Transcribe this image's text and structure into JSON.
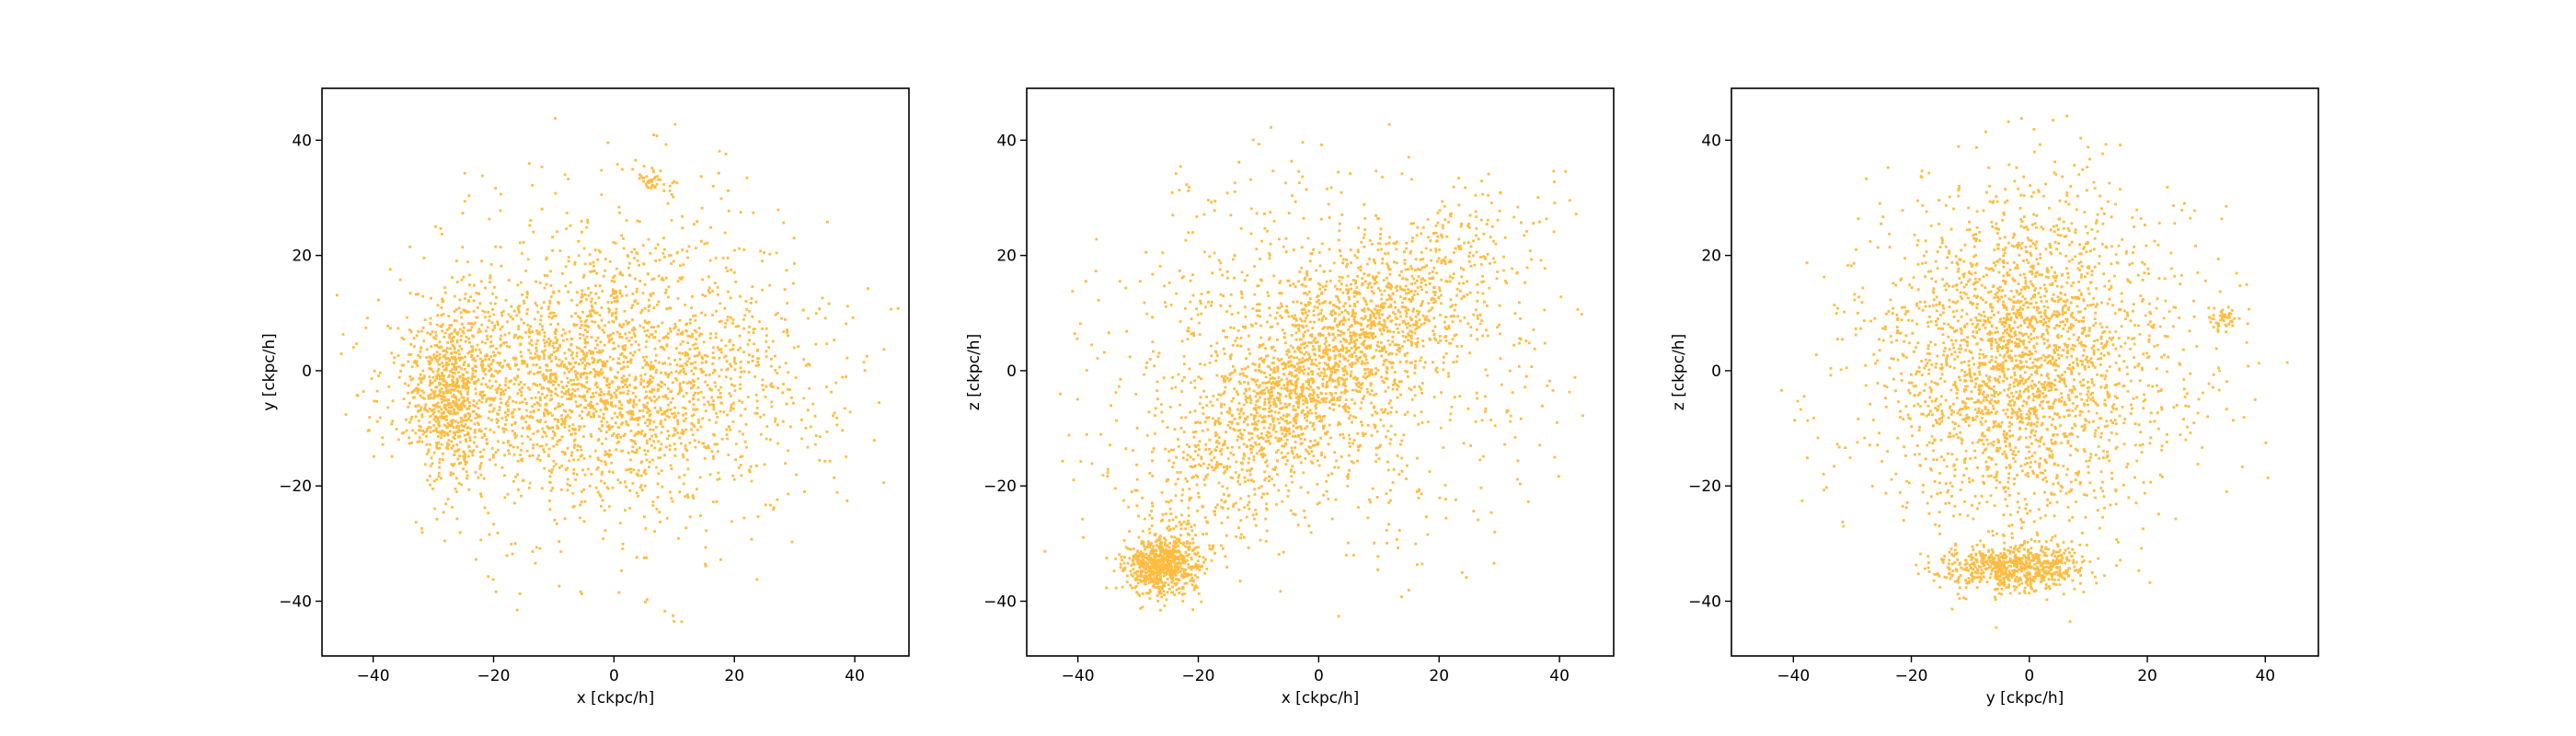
{
  "figure": {
    "background": "#ffffff",
    "point_color": "#ffa500"
  },
  "chart_data": [
    {
      "type": "scatter",
      "title": "",
      "xlabel": "x [ckpc/h]",
      "ylabel": "y [ckpc/h]",
      "xlim": [
        -48.5,
        49
      ],
      "ylim": [
        -49.5,
        49
      ],
      "xticks": [
        -40,
        -20,
        0,
        20,
        40
      ],
      "yticks": [
        -40,
        -20,
        0,
        20,
        40
      ],
      "xtick_labels": [
        "−40",
        "−20",
        "0",
        "20",
        "40"
      ],
      "ytick_labels": [
        "−40",
        "−20",
        "0",
        "20",
        "40"
      ],
      "grid": false,
      "legend": "none",
      "color": "#ffa500",
      "structures": [
        {
          "kind": "halo",
          "center": [
            0,
            0
          ],
          "sigma": [
            18,
            16
          ],
          "radius": 45
        },
        {
          "kind": "disk",
          "center": [
            -3,
            -2
          ],
          "sigma": [
            16,
            9
          ]
        },
        {
          "kind": "core",
          "center": [
            -27,
            -4
          ],
          "sigma": [
            3.5,
            7
          ]
        },
        {
          "kind": "clump",
          "center": [
            6,
            33
          ],
          "sigma": [
            1.2,
            1.2
          ]
        }
      ]
    },
    {
      "type": "scatter",
      "title": "",
      "xlabel": "x [ckpc/h]",
      "ylabel": "z [ckpc/h]",
      "xlim": [
        -48.5,
        49
      ],
      "ylim": [
        -49.5,
        49
      ],
      "xticks": [
        -40,
        -20,
        0,
        20,
        40
      ],
      "yticks": [
        -40,
        -20,
        0,
        20,
        40
      ],
      "xtick_labels": [
        "−40",
        "−20",
        "0",
        "20",
        "40"
      ],
      "ytick_labels": [
        "−40",
        "−20",
        "0",
        "20",
        "40"
      ],
      "grid": false,
      "legend": "none",
      "color": "#ffa500",
      "structures": [
        {
          "kind": "halo",
          "center": [
            0,
            0
          ],
          "sigma": [
            18,
            16
          ],
          "radius": 45
        },
        {
          "kind": "tilted-disk",
          "center": [
            3,
            3
          ],
          "sigma": [
            17,
            6
          ],
          "angle_deg": 40
        },
        {
          "kind": "core",
          "center": [
            -26,
            -34
          ],
          "sigma": [
            3,
            2.5
          ]
        },
        {
          "kind": "stream",
          "from": [
            -26,
            -34
          ],
          "to": [
            0,
            0
          ],
          "width": 5
        }
      ]
    },
    {
      "type": "scatter",
      "title": "",
      "xlabel": "y [ckpc/h]",
      "ylabel": "z [ckpc/h]",
      "xlim": [
        -50.5,
        49
      ],
      "ylim": [
        -49.5,
        49
      ],
      "xticks": [
        -40,
        -20,
        0,
        20,
        40
      ],
      "yticks": [
        -40,
        -20,
        0,
        20,
        40
      ],
      "xtick_labels": [
        "−40",
        "−20",
        "0",
        "20",
        "40"
      ],
      "ytick_labels": [
        "−40",
        "−20",
        "0",
        "20",
        "40"
      ],
      "grid": false,
      "legend": "none",
      "color": "#ffa500",
      "structures": [
        {
          "kind": "halo",
          "center": [
            0,
            0
          ],
          "sigma": [
            18,
            16
          ],
          "radius": 45
        },
        {
          "kind": "disk",
          "center": [
            -2,
            3
          ],
          "sigma": [
            9,
            14
          ]
        },
        {
          "kind": "core",
          "center": [
            -2,
            -34
          ],
          "sigma": [
            6,
            2
          ]
        },
        {
          "kind": "clump",
          "center": [
            33,
            9
          ],
          "sigma": [
            1.1,
            1.1
          ]
        }
      ]
    }
  ]
}
